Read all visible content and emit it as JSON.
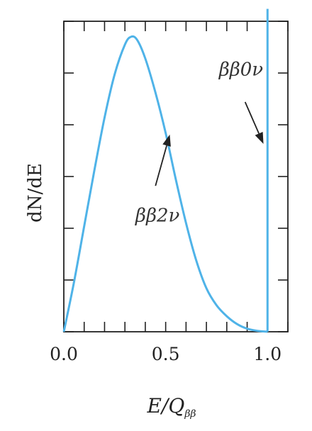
{
  "chart_data": {
    "type": "line",
    "ylabel": "dN/dE",
    "xlabel": {
      "main": "E/Q",
      "subscript": "ββ"
    },
    "xlim": [
      0,
      1.1
    ],
    "ylim": [
      0,
      1.0
    ],
    "xticks": [
      0.0,
      0.1,
      0.2,
      0.3,
      0.4,
      0.5,
      0.6,
      0.7,
      0.8,
      0.9,
      1.0,
      1.1
    ],
    "xtick_labels": [
      {
        "x": 0.0,
        "label": "0.0"
      },
      {
        "x": 0.5,
        "label": "0.5"
      },
      {
        "x": 1.0,
        "label": "1.0"
      }
    ],
    "yticks": [
      0,
      0.16667,
      0.33333,
      0.5,
      0.66667,
      0.83333,
      1.0
    ],
    "series": [
      {
        "kind": "curve",
        "color": "#4fb3e8",
        "x": [
          0.0,
          0.05,
          0.1,
          0.15,
          0.2,
          0.25,
          0.3,
          0.33,
          0.36,
          0.4,
          0.45,
          0.5,
          0.55,
          0.6,
          0.65,
          0.7,
          0.75,
          0.8,
          0.85,
          0.9,
          0.95,
          1.0
        ],
        "y": [
          0.0,
          0.16,
          0.34,
          0.52,
          0.69,
          0.83,
          0.925,
          0.95,
          0.94,
          0.88,
          0.77,
          0.64,
          0.49,
          0.35,
          0.23,
          0.14,
          0.085,
          0.05,
          0.025,
          0.01,
          0.003,
          0.0
        ]
      },
      {
        "kind": "line-peak",
        "color": "#4fb3e8",
        "x": 1.0,
        "y": 1.04
      }
    ],
    "annotations": [
      {
        "label": "ββ2ν",
        "text_x": 0.46,
        "text_y": 0.355,
        "arrow_from": [
          0.45,
          0.47
        ],
        "arrow_to": [
          0.52,
          0.635
        ]
      },
      {
        "label": "ββ0ν",
        "text_x": 0.87,
        "text_y": 0.825,
        "arrow_from": [
          0.89,
          0.74
        ],
        "arrow_to": [
          0.98,
          0.605
        ]
      }
    ]
  }
}
